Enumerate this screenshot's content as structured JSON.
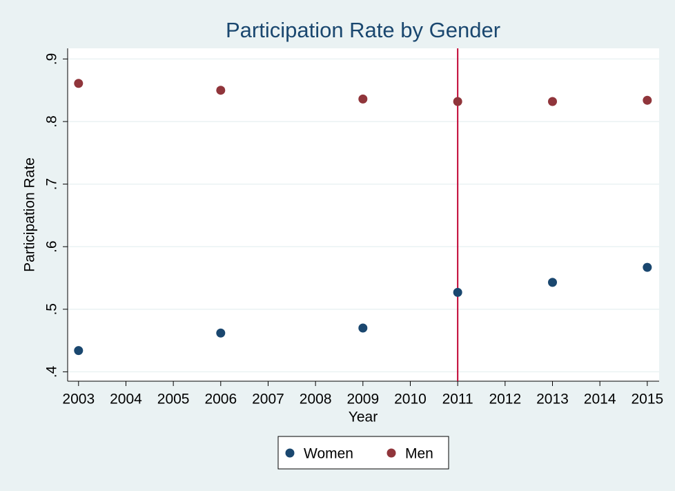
{
  "chart_data": {
    "type": "scatter",
    "title": "Participation Rate by Gender",
    "x_label": "Year",
    "y_label": "Participation Rate",
    "x": [
      2003,
      2006,
      2009,
      2011,
      2013,
      2015
    ],
    "series": [
      {
        "name": "Women",
        "color": "#1a476f",
        "values": [
          0.434,
          0.462,
          0.47,
          0.527,
          0.543,
          0.567
        ]
      },
      {
        "name": "Men",
        "color": "#90353b",
        "values": [
          0.861,
          0.85,
          0.836,
          0.832,
          0.832,
          0.834
        ]
      }
    ],
    "xlim": [
      2002.77,
      2015.25
    ],
    "ylim": [
      0.385,
      0.917
    ],
    "xticks": [
      2003,
      2004,
      2005,
      2006,
      2007,
      2008,
      2009,
      2010,
      2011,
      2012,
      2013,
      2014,
      2015
    ],
    "yticks": [
      {
        "value": 0.4,
        "label": ".4"
      },
      {
        "value": 0.5,
        "label": ".5"
      },
      {
        "value": 0.6,
        "label": ".6"
      },
      {
        "value": 0.7,
        "label": ".7"
      },
      {
        "value": 0.8,
        "label": ".8"
      },
      {
        "value": 0.9,
        "label": ".9"
      }
    ],
    "reference_line_x": 2011,
    "reference_line_color": "#c10534",
    "grid": true,
    "legend_position": "bottom"
  }
}
